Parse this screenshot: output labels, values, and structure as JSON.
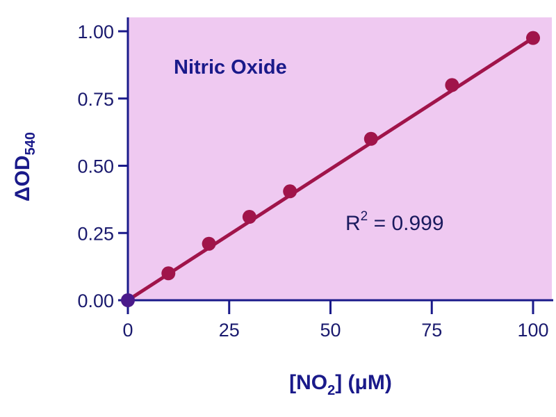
{
  "chart_data": {
    "type": "scatter",
    "title": "Nitric Oxide",
    "xlabel": "[NO2] (μM)",
    "xlabel_parts": {
      "pre": "[NO",
      "sub": "2",
      "post": "] (μM)"
    },
    "ylabel": "ΔOD540",
    "ylabel_parts": {
      "main": "ΔOD",
      "sub": "540"
    },
    "xlim": [
      0,
      100
    ],
    "ylim": [
      0,
      1.0
    ],
    "x_ticks": [
      "0",
      "25",
      "50",
      "75",
      "100"
    ],
    "y_ticks": [
      "0.00",
      "0.25",
      "0.50",
      "0.75",
      "1.00"
    ],
    "grid": false,
    "x": [
      0,
      10,
      20,
      30,
      40,
      60,
      80,
      100
    ],
    "y": [
      0.0,
      0.1,
      0.21,
      0.31,
      0.405,
      0.6,
      0.8,
      0.975
    ],
    "fit_line": {
      "x": [
        0,
        100
      ],
      "y": [
        0.0,
        0.975
      ]
    },
    "annotation": {
      "pre": "R",
      "sup": "2",
      "post": " = 0.999"
    },
    "colors": {
      "background": "#efc9f1",
      "axis": "#1a1a8a",
      "series": "#a0144a",
      "text": "#1a1a8a"
    }
  }
}
